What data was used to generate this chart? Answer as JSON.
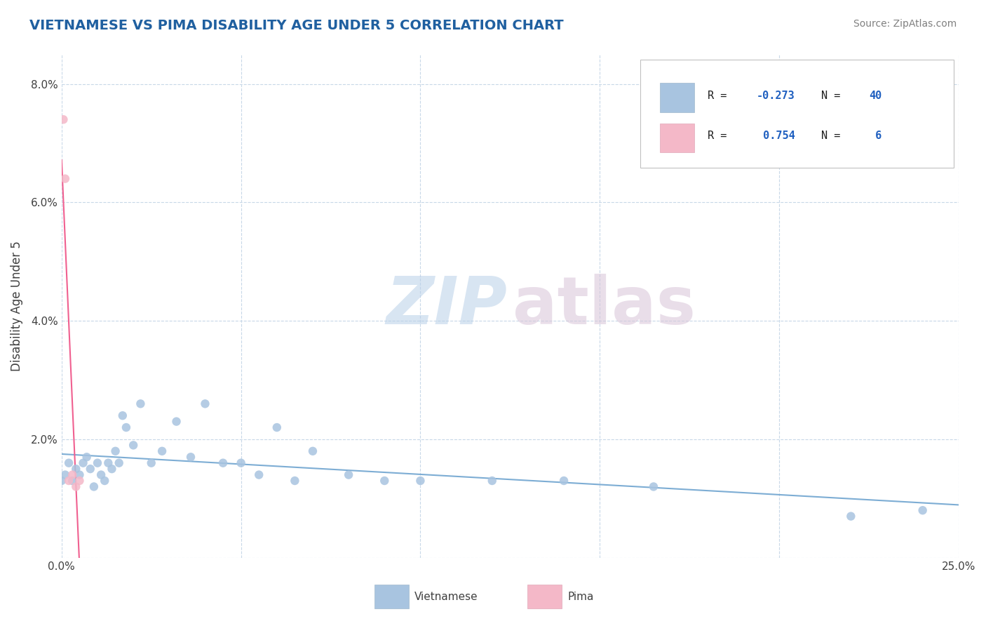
{
  "title": "VIETNAMESE VS PIMA DISABILITY AGE UNDER 5 CORRELATION CHART",
  "source": "Source: ZipAtlas.com",
  "ylabel": "Disability Age Under 5",
  "xlim": [
    0.0,
    0.25
  ],
  "ylim": [
    0.0,
    0.085
  ],
  "color_vietnamese": "#a8c4e0",
  "color_pima": "#f4b8c8",
  "color_line_vietnamese": "#7dadd4",
  "color_line_pima": "#f06090",
  "background_color": "#ffffff",
  "grid_color": "#c8d8e8",
  "title_color": "#2060a0",
  "viet_x": [
    0.0,
    0.001,
    0.002,
    0.003,
    0.004,
    0.005,
    0.006,
    0.007,
    0.008,
    0.009,
    0.01,
    0.011,
    0.012,
    0.013,
    0.014,
    0.015,
    0.016,
    0.017,
    0.018,
    0.02,
    0.022,
    0.025,
    0.028,
    0.032,
    0.036,
    0.04,
    0.045,
    0.05,
    0.055,
    0.06,
    0.065,
    0.07,
    0.08,
    0.09,
    0.1,
    0.12,
    0.14,
    0.165,
    0.22,
    0.24
  ],
  "viet_y": [
    0.013,
    0.014,
    0.016,
    0.013,
    0.015,
    0.014,
    0.016,
    0.017,
    0.015,
    0.012,
    0.016,
    0.014,
    0.013,
    0.016,
    0.015,
    0.018,
    0.016,
    0.024,
    0.022,
    0.019,
    0.026,
    0.016,
    0.018,
    0.023,
    0.017,
    0.026,
    0.016,
    0.016,
    0.014,
    0.022,
    0.013,
    0.018,
    0.014,
    0.013,
    0.013,
    0.013,
    0.013,
    0.012,
    0.007,
    0.008
  ],
  "pima_x": [
    0.0005,
    0.001,
    0.002,
    0.003,
    0.004,
    0.005
  ],
  "pima_y": [
    0.074,
    0.064,
    0.013,
    0.014,
    0.012,
    0.013
  ]
}
